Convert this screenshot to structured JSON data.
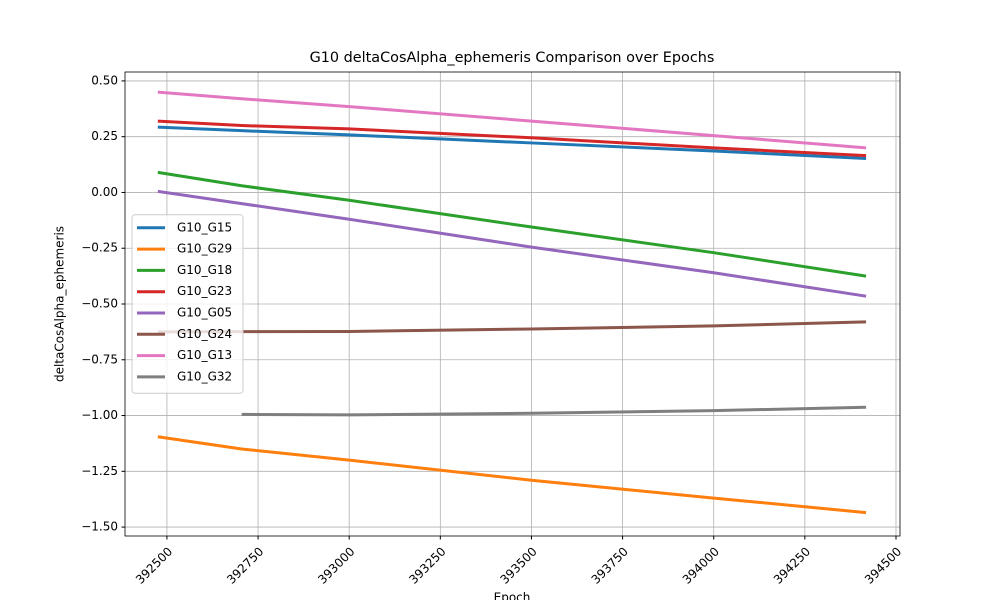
{
  "chart_data": {
    "type": "line",
    "title": "G10 deltaCosAlpha_ephemeris Comparison over Epochs",
    "xlabel": "Epoch",
    "ylabel": "deltaCosAlpha_ephemeris",
    "x": [
      392475,
      392705,
      393000,
      393500,
      394000,
      394418
    ],
    "series": [
      {
        "name": "G10_G15",
        "color": "#1f77b4",
        "values": [
          0.293,
          0.277,
          0.258,
          0.222,
          0.186,
          0.152
        ]
      },
      {
        "name": "G10_G29",
        "color": "#ff7f0e",
        "values": [
          -1.095,
          -1.15,
          -1.2,
          -1.29,
          -1.37,
          -1.435
        ]
      },
      {
        "name": "G10_G18",
        "color": "#2ca02c",
        "values": [
          0.09,
          0.03,
          -0.035,
          -0.155,
          -0.27,
          -0.375
        ]
      },
      {
        "name": "G10_G23",
        "color": "#d62728",
        "values": [
          0.32,
          0.3,
          0.285,
          0.245,
          0.2,
          0.165
        ]
      },
      {
        "name": "G10_G05",
        "color": "#9467bd",
        "values": [
          0.005,
          -0.05,
          -0.12,
          -0.245,
          -0.36,
          -0.465
        ]
      },
      {
        "name": "G10_G24",
        "color": "#8c564b",
        "values": [
          -0.625,
          -0.624,
          -0.623,
          -0.612,
          -0.598,
          -0.58
        ]
      },
      {
        "name": "G10_G13",
        "color": "#e377c2",
        "values": [
          0.45,
          0.42,
          0.385,
          0.32,
          0.255,
          0.2
        ]
      },
      {
        "name": "G10_G32",
        "color": "#7f7f7f",
        "values": [
          null,
          -0.995,
          -0.997,
          -0.99,
          -0.978,
          -0.963
        ]
      }
    ],
    "xlim": [
      392385,
      394511
    ],
    "ylim": [
      -1.54,
      0.54
    ],
    "xticks": [
      392500,
      392750,
      393000,
      393250,
      393500,
      393750,
      394000,
      394250,
      394500
    ],
    "yticks": [
      {
        "value": 0.5,
        "label": "0.50"
      },
      {
        "value": 0.25,
        "label": "0.25"
      },
      {
        "value": 0,
        "label": "0.00"
      },
      {
        "value": -0.25,
        "label": "−0.25"
      },
      {
        "value": -0.5,
        "label": "−0.50"
      },
      {
        "value": -0.75,
        "label": "−0.75"
      },
      {
        "value": -1,
        "label": "−1.00"
      },
      {
        "value": -1.25,
        "label": "−1.25"
      },
      {
        "value": -1.5,
        "label": "−1.50"
      }
    ],
    "grid": true,
    "legend": "center left"
  }
}
